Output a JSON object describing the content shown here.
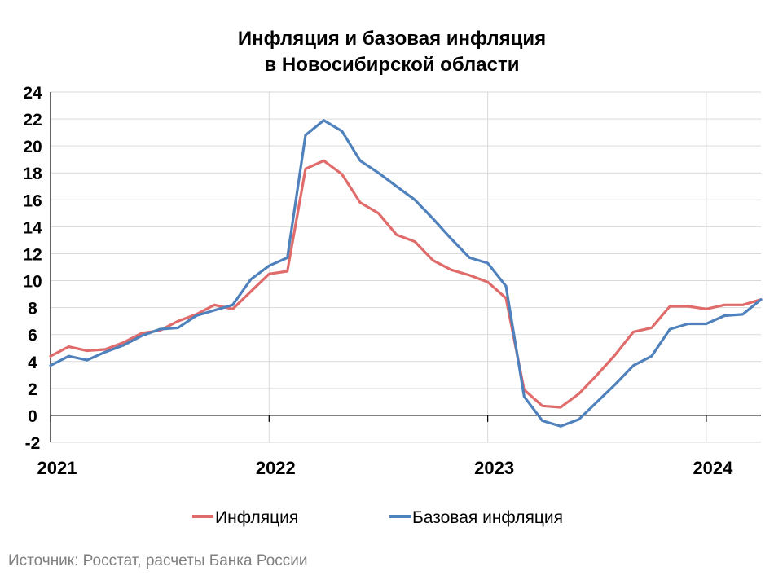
{
  "chart_data": {
    "type": "line",
    "title": [
      "Инфляция и базовая инфляция",
      "в Новосибирской области"
    ],
    "source": "Источник: Росстат, расчеты Банка России",
    "yticks": [
      "-2",
      "0",
      "2",
      "4",
      "6",
      "8",
      "10",
      "12",
      "14",
      "16",
      "18",
      "20",
      "22",
      "24"
    ],
    "ylim": [
      -2,
      24
    ],
    "xticks": [
      "2021",
      "2022",
      "2023",
      "2024"
    ],
    "x_start": "2021-01",
    "x_end": "2024-04",
    "x": [
      "2021-01",
      "2021-02",
      "2021-03",
      "2021-04",
      "2021-05",
      "2021-06",
      "2021-07",
      "2021-08",
      "2021-09",
      "2021-10",
      "2021-11",
      "2021-12",
      "2022-01",
      "2022-02",
      "2022-03",
      "2022-04",
      "2022-05",
      "2022-06",
      "2022-07",
      "2022-08",
      "2022-09",
      "2022-10",
      "2022-11",
      "2022-12",
      "2023-01",
      "2023-02",
      "2023-03",
      "2023-04",
      "2023-05",
      "2023-06",
      "2023-07",
      "2023-08",
      "2023-09",
      "2023-10",
      "2023-11",
      "2023-12",
      "2024-01",
      "2024-02",
      "2024-03",
      "2024-04"
    ],
    "grid": true,
    "legend_position": "bottom",
    "series": [
      {
        "name": "Инфляция",
        "color": "#e06b6b",
        "values": [
          4.4,
          5.1,
          4.8,
          4.9,
          5.4,
          6.1,
          6.3,
          7.0,
          7.5,
          8.2,
          7.9,
          9.2,
          10.5,
          10.7,
          18.3,
          18.9,
          17.9,
          15.8,
          15.0,
          13.4,
          12.9,
          11.5,
          10.8,
          10.4,
          9.9,
          8.7,
          1.9,
          0.7,
          0.6,
          1.6,
          3.0,
          4.5,
          6.2,
          6.5,
          8.1,
          8.1,
          7.9,
          8.2,
          8.2,
          8.6
        ],
        "first": 4.4
      },
      {
        "name": "Базовая инфляция",
        "color": "#4f81bd",
        "values": [
          3.7,
          4.4,
          4.1,
          4.7,
          5.2,
          5.9,
          6.4,
          6.5,
          7.4,
          7.8,
          8.2,
          10.1,
          11.1,
          11.7,
          20.8,
          21.9,
          21.1,
          18.9,
          18.0,
          17.0,
          16.0,
          14.6,
          13.1,
          11.7,
          11.3,
          9.6,
          1.4,
          -0.4,
          -0.8,
          -0.3,
          1.0,
          2.3,
          3.7,
          4.4,
          6.4,
          6.8,
          6.8,
          7.4,
          7.5,
          8.6
        ],
        "first": 3.7
      }
    ]
  }
}
